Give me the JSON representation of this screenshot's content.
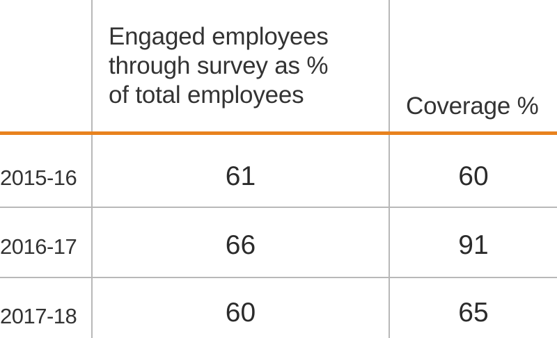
{
  "chart_data": {
    "type": "table",
    "columns": [
      "Engaged employees through survey as % of total employees",
      "Coverage %"
    ],
    "header_lines": {
      "col1": [
        "Engaged employees",
        "through survey as %",
        "of total employees"
      ],
      "col2": "Coverage %"
    },
    "rows": [
      {
        "label": "2015-16",
        "values": [
          "61",
          "60"
        ]
      },
      {
        "label": "2016-17",
        "values": [
          "66",
          "91"
        ]
      },
      {
        "label": "2017-18",
        "values": [
          "60",
          "65"
        ]
      }
    ]
  },
  "colors": {
    "accent": "#e8821e",
    "grid": "#b8b8b8",
    "text": "#2b2b2b"
  }
}
